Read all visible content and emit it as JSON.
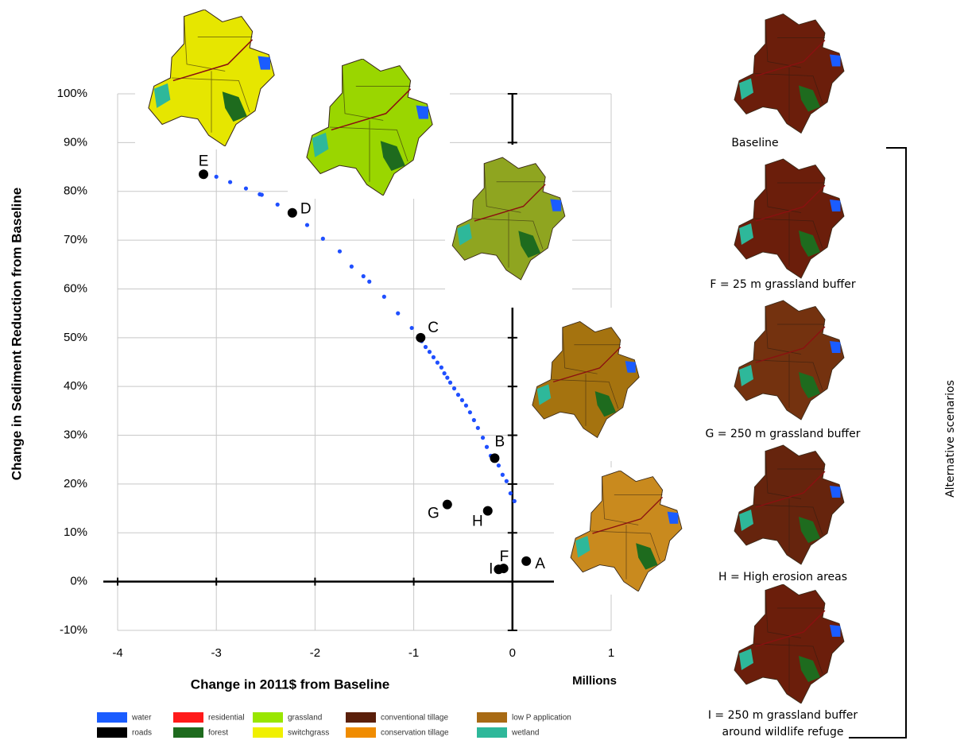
{
  "chart_data": {
    "type": "scatter",
    "xlabel": "Change in 2011$ from Baseline",
    "xunit": "Millions",
    "ylabel": "Change in Sediment Reduction from Baseline",
    "xlim": [
      -4,
      1
    ],
    "xticks": [
      -4,
      -3,
      -2,
      -1,
      0,
      1
    ],
    "ylim": [
      -10,
      100
    ],
    "yticks": [
      {
        "value": -10,
        "label": "-10%"
      },
      {
        "value": 0,
        "label": "0%"
      },
      {
        "value": 10,
        "label": "10%"
      },
      {
        "value": 20,
        "label": "20%"
      },
      {
        "value": 30,
        "label": "30%"
      },
      {
        "value": 40,
        "label": "40%"
      },
      {
        "value": 50,
        "label": "50%"
      },
      {
        "value": 60,
        "label": "60%"
      },
      {
        "value": 70,
        "label": "70%"
      },
      {
        "value": 80,
        "label": "80%"
      },
      {
        "value": 90,
        "label": "90%"
      },
      {
        "value": 100,
        "label": "100%"
      }
    ],
    "grid": true,
    "series": [
      {
        "color": "#1f4fff",
        "x": [
          -3.12,
          -3.0,
          -2.86,
          -2.7,
          -2.56,
          -2.54,
          -2.38,
          -2.08,
          -1.92,
          -1.75,
          -1.63,
          -1.51,
          -1.45,
          -1.3,
          -1.16,
          -1.02,
          -0.92,
          -0.88,
          -0.84,
          -0.8,
          -0.76,
          -0.72,
          -0.69,
          -0.66,
          -0.63,
          -0.59,
          -0.55,
          -0.51,
          -0.47,
          -0.43,
          -0.39,
          -0.35,
          -0.3,
          -0.26,
          -0.22,
          -0.14,
          -0.1,
          -0.06,
          -0.02,
          0.02
        ],
        "values": [
          83.7,
          83.0,
          81.9,
          80.6,
          79.4,
          79.3,
          77.3,
          73.1,
          70.3,
          67.7,
          64.6,
          62.6,
          61.5,
          58.4,
          55.0,
          52.0,
          49.3,
          48.1,
          47.1,
          46.0,
          44.9,
          43.9,
          42.7,
          41.8,
          40.8,
          39.6,
          38.3,
          37.2,
          36.1,
          34.7,
          33.1,
          31.5,
          29.5,
          27.6,
          25.8,
          23.8,
          21.9,
          20.6,
          18.1,
          16.5
        ]
      },
      {
        "color": "#000000",
        "labels": [
          "E",
          "D",
          "C",
          "B",
          "G",
          "H",
          "I",
          "F",
          "A"
        ],
        "x": [
          -3.13,
          -2.23,
          -0.93,
          -0.18,
          -0.66,
          -0.25,
          -0.14,
          -0.09,
          0.14
        ],
        "values": [
          83.5,
          75.6,
          50.0,
          25.3,
          15.8,
          14.5,
          2.5,
          2.7,
          4.2
        ]
      }
    ]
  },
  "map_panels": [
    {
      "caption": [
        "Baseline"
      ]
    },
    {
      "caption": [
        "F = 25 m grassland buffer"
      ]
    },
    {
      "caption": [
        "G = 250 m grassland buffer"
      ]
    },
    {
      "caption": [
        "H = High erosion areas"
      ]
    },
    {
      "caption": [
        "I = 250 m grassland buffer",
        "around  wildlife refuge"
      ]
    }
  ],
  "bracket_label": "Alternative scenarios",
  "land_use_legend": [
    {
      "name": "water",
      "color": "#1a5cff"
    },
    {
      "name": "residential",
      "color": "#ff1a1a"
    },
    {
      "name": "grassland",
      "color": "#99e600"
    },
    {
      "name": "conventional tillage",
      "color": "#5a1f0a"
    },
    {
      "name": "low P application",
      "color": "#a86a14"
    },
    {
      "name": "roads",
      "color": "#000000"
    },
    {
      "name": "forest",
      "color": "#1e6b1e"
    },
    {
      "name": "switchgrass",
      "color": "#f0f000"
    },
    {
      "name": "conservation tillage",
      "color": "#f08c00"
    },
    {
      "name": "wetland",
      "color": "#2eb89a"
    }
  ]
}
